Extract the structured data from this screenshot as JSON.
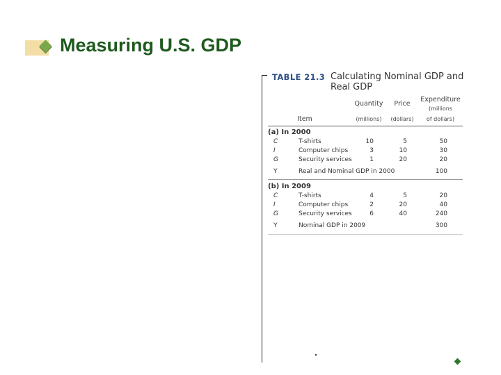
{
  "slide": {
    "title": "Measuring U.S. GDP",
    "accent_color": "#1e5a1e",
    "bullet_color": "#7aa84a",
    "nav_icon": "diamond-bullet"
  },
  "table": {
    "label": "TABLE  21.3",
    "caption": "Calculating Nominal GDP and Real GDP",
    "headers": {
      "item": "Item",
      "quantity": "Quantity",
      "quantity_unit": "(millions)",
      "price": "Price",
      "price_unit": "(dollars)",
      "expenditure_line1": "Expenditure",
      "expenditure_line2": "(millions",
      "expenditure_line3": "of dollars)"
    },
    "sections": [
      {
        "heading": "(a) In 2000",
        "rows": [
          {
            "code": "C",
            "item": "T-shirts",
            "quantity": "10",
            "price": "5",
            "expenditure": "50"
          },
          {
            "code": "I",
            "item": "Computer chips",
            "quantity": "3",
            "price": "10",
            "expenditure": "30"
          },
          {
            "code": "G",
            "item": "Security services",
            "quantity": "1",
            "price": "20",
            "expenditure": "20"
          },
          {
            "code": "Y",
            "item": "Real and Nominal GDP in 2000",
            "quantity": "",
            "price": "",
            "expenditure": "100"
          }
        ]
      },
      {
        "heading": "(b) In 2009",
        "rows": [
          {
            "code": "C",
            "item": "T-shirts",
            "quantity": "4",
            "price": "5",
            "expenditure": "20"
          },
          {
            "code": "I",
            "item": "Computer chips",
            "quantity": "2",
            "price": "20",
            "expenditure": "40"
          },
          {
            "code": "G",
            "item": "Security services",
            "quantity": "6",
            "price": "40",
            "expenditure": "240"
          },
          {
            "code": "Y",
            "item": "Nominal GDP in 2009",
            "quantity": "",
            "price": "",
            "expenditure": "300"
          }
        ]
      }
    ]
  }
}
